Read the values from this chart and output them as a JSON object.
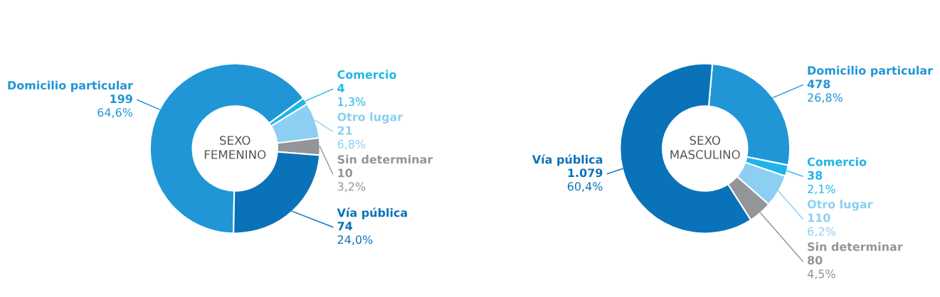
{
  "chart_data": [
    {
      "type": "donut",
      "title": "SEXO\nFEMENINO",
      "categories": [
        "Domicilio particular",
        "Comercio",
        "Otro lugar",
        "Sin determinar",
        "Vía pública"
      ],
      "values": [
        199,
        4,
        21,
        10,
        74
      ],
      "value_labels": [
        "199\n64,6%",
        "4\n1,3%",
        "21\n6,8%",
        "10\n3,2%",
        "74\n24,0%"
      ],
      "colors": [
        "#2196d6",
        "#1fb5ea",
        "#8ccff2",
        "#939598",
        "#0a72b8"
      ]
    },
    {
      "type": "donut",
      "title": "SEXO\nMASCULINO",
      "categories": [
        "Domicilio particular",
        "Comercio",
        "Otro lugar",
        "Sin determinar",
        "Vía pública"
      ],
      "values": [
        478,
        38,
        110,
        80,
        1079
      ],
      "value_labels": [
        "478\n26,8%",
        "38\n2,1%",
        "110\n6,2%",
        "80\n4,5%",
        "1.079\n60,4%"
      ],
      "colors": [
        "#2196d6",
        "#1fb5ea",
        "#8ccff2",
        "#939598",
        "#0a72b8"
      ]
    }
  ]
}
